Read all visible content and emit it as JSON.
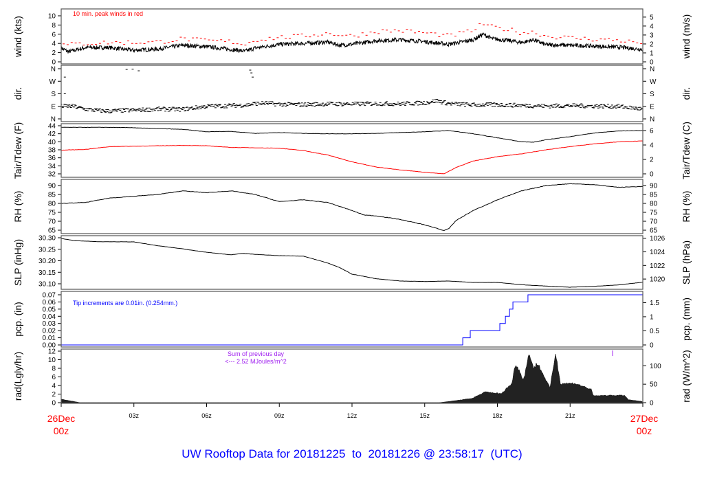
{
  "title": "UW Rooftop Data for 20181225  to  20181226 @ 23:58:17  (UTC)",
  "colors": {
    "title": "#0000ff",
    "peak": "#ff0000",
    "tdew": "#ff0000",
    "pcp": "#0000ff",
    "rad_note": "#a020f0",
    "date_label": "#ff0000"
  },
  "x_axis": {
    "range_hours": [
      0,
      24
    ],
    "ticks": [
      {
        "h": 3,
        "label": "03z"
      },
      {
        "h": 6,
        "label": "06z"
      },
      {
        "h": 9,
        "label": "09z"
      },
      {
        "h": 12,
        "label": "12z"
      },
      {
        "h": 15,
        "label": "15z"
      },
      {
        "h": 18,
        "label": "18z"
      },
      {
        "h": 21,
        "label": "21z"
      }
    ],
    "start_date": "26Dec",
    "start_time": "00z",
    "end_date": "27Dec",
    "end_time": "00z"
  },
  "chart_data": [
    {
      "type": "line",
      "id": "wind",
      "ylabel": "wind (kts)",
      "ylabel_right": "wind (m/s)",
      "ylim": [
        0,
        10
      ],
      "yticks": [
        0,
        2,
        4,
        6,
        8,
        10
      ],
      "yticks_right": [
        0,
        1,
        2,
        3,
        4,
        5
      ],
      "annotation": "10 min. peak winds in red",
      "series": [
        {
          "points": [
            [
              0,
              3
            ],
            [
              0.3,
              2.2
            ],
            [
              1,
              3.1
            ],
            [
              2,
              3.1
            ],
            [
              3,
              2.5
            ],
            [
              4,
              2.8
            ],
            [
              5,
              3.6
            ],
            [
              6,
              3.3
            ],
            [
              7,
              2.7
            ],
            [
              7.6,
              2.3
            ],
            [
              8,
              3
            ],
            [
              9,
              3.8
            ],
            [
              10,
              4
            ],
            [
              11,
              4.3
            ],
            [
              11.5,
              3.6
            ],
            [
              12,
              3.8
            ],
            [
              13,
              4.6
            ],
            [
              14,
              4.8
            ],
            [
              15,
              4.4
            ],
            [
              16,
              3.8
            ],
            [
              17,
              4.8
            ],
            [
              17.4,
              6
            ],
            [
              17.8,
              5
            ],
            [
              18.5,
              4.6
            ],
            [
              19,
              4.2
            ],
            [
              19.5,
              4.8
            ],
            [
              20,
              3.7
            ],
            [
              21,
              3.6
            ],
            [
              22,
              3.4
            ],
            [
              23,
              3.2
            ],
            [
              24,
              2.7
            ]
          ]
        },
        {
          "name": "10 min. peak winds",
          "points": [
            [
              0,
              3.6
            ],
            [
              1,
              4
            ],
            [
              2,
              4.2
            ],
            [
              3,
              4.2
            ],
            [
              4,
              4.3
            ],
            [
              5,
              5
            ],
            [
              6,
              4.6
            ],
            [
              7,
              4.4
            ],
            [
              7.6,
              3.8
            ],
            [
              8,
              4.8
            ],
            [
              9,
              5.3
            ],
            [
              10,
              5.6
            ],
            [
              11,
              6.2
            ],
            [
              12,
              5.6
            ],
            [
              13,
              6.6
            ],
            [
              14,
              6.8
            ],
            [
              15,
              6.3
            ],
            [
              16,
              5.6
            ],
            [
              17,
              6.8
            ],
            [
              17.4,
              8.3
            ],
            [
              17.8,
              7.5
            ],
            [
              18.5,
              7
            ],
            [
              19,
              6.3
            ],
            [
              19.5,
              6.5
            ],
            [
              20,
              5.6
            ],
            [
              21,
              5.2
            ],
            [
              22,
              4.9
            ],
            [
              23,
              4.7
            ],
            [
              24,
              4
            ]
          ]
        }
      ]
    },
    {
      "type": "scatter",
      "id": "dir",
      "ylabel": "dir.",
      "ylabel_right": "dir.",
      "ylim": [
        0,
        360
      ],
      "ytick_labels": [
        "N",
        "E",
        "S",
        "W",
        "N"
      ],
      "series": [
        {
          "points": [
            [
              0,
              92
            ],
            [
              0.5,
              90
            ],
            [
              1,
              70
            ],
            [
              1.5,
              60
            ],
            [
              2,
              55
            ],
            [
              2.5,
              60
            ],
            [
              3,
              62
            ],
            [
              4,
              70
            ],
            [
              5,
              68
            ],
            [
              6,
              90
            ],
            [
              7,
              95
            ],
            [
              7.7,
              100
            ],
            [
              8,
              110
            ],
            [
              8.5,
              112
            ],
            [
              9,
              105
            ],
            [
              10,
              102
            ],
            [
              11,
              108
            ],
            [
              12,
              106
            ],
            [
              13,
              110
            ],
            [
              14,
              108
            ],
            [
              15,
              115
            ],
            [
              15.5,
              130
            ],
            [
              16,
              110
            ],
            [
              17,
              100
            ],
            [
              18,
              102
            ],
            [
              19,
              96
            ],
            [
              20,
              92
            ],
            [
              21,
              95
            ],
            [
              22,
              92
            ],
            [
              23,
              90
            ],
            [
              23.5,
              80
            ],
            [
              24,
              70
            ]
          ]
        }
      ]
    },
    {
      "type": "line",
      "id": "temp",
      "ylabel": "Tair/Tdew (F)",
      "ylabel_right": "Tair/Tdew (C)",
      "ylim": [
        32,
        44
      ],
      "yticks": [
        32,
        34,
        36,
        38,
        40,
        42,
        44
      ],
      "yticks_right": [
        0,
        2,
        4,
        6
      ],
      "series": [
        {
          "name": "Tair",
          "points": [
            [
              0,
              43.6
            ],
            [
              2,
              43.6
            ],
            [
              3,
              43.5
            ],
            [
              4,
              43.3
            ],
            [
              5,
              43.1
            ],
            [
              6,
              42.5
            ],
            [
              7,
              42.6
            ],
            [
              8,
              42.1
            ],
            [
              9,
              42.3
            ],
            [
              10,
              42.1
            ],
            [
              11,
              42
            ],
            [
              12,
              42
            ],
            [
              13,
              42.1
            ],
            [
              14,
              42.3
            ],
            [
              15,
              42.5
            ],
            [
              16,
              42.8
            ],
            [
              17,
              42
            ],
            [
              18,
              41
            ],
            [
              19,
              40
            ],
            [
              19.5,
              39.9
            ],
            [
              20,
              40.5
            ],
            [
              21,
              41.3
            ],
            [
              22,
              42.2
            ],
            [
              23,
              42.7
            ],
            [
              24,
              42.8
            ]
          ]
        },
        {
          "name": "Tdew",
          "points": [
            [
              0,
              37.9
            ],
            [
              1,
              38.1
            ],
            [
              2,
              38.8
            ],
            [
              3,
              38.9
            ],
            [
              4,
              39
            ],
            [
              5,
              39.1
            ],
            [
              6,
              39
            ],
            [
              7,
              38.6
            ],
            [
              8,
              38.5
            ],
            [
              9,
              38.4
            ],
            [
              10,
              37.8
            ],
            [
              11,
              36.7
            ],
            [
              12,
              35
            ],
            [
              13,
              33.7
            ],
            [
              14,
              33
            ],
            [
              15,
              32.4
            ],
            [
              15.8,
              32
            ],
            [
              16.3,
              33.6
            ],
            [
              17,
              35.2
            ],
            [
              18,
              36.3
            ],
            [
              19,
              37
            ],
            [
              20,
              38
            ],
            [
              21,
              38.8
            ],
            [
              22,
              39.5
            ],
            [
              23,
              40
            ],
            [
              24,
              40.2
            ]
          ]
        }
      ]
    },
    {
      "type": "line",
      "id": "rh",
      "ylabel": "RH (%)",
      "ylabel_right": "RH (%)",
      "ylim": [
        65,
        90
      ],
      "yticks": [
        65,
        70,
        75,
        80,
        85,
        90
      ],
      "series": [
        {
          "points": [
            [
              0,
              80
            ],
            [
              1,
              80.5
            ],
            [
              2,
              83
            ],
            [
              3,
              84
            ],
            [
              4,
              85
            ],
            [
              5,
              87
            ],
            [
              6,
              86
            ],
            [
              7,
              87
            ],
            [
              8,
              85
            ],
            [
              9,
              81
            ],
            [
              10,
              82
            ],
            [
              11,
              80.5
            ],
            [
              12,
              76
            ],
            [
              12.5,
              73.5
            ],
            [
              13,
              73
            ],
            [
              14,
              71
            ],
            [
              15,
              68
            ],
            [
              15.5,
              66
            ],
            [
              15.8,
              64.8
            ],
            [
              16,
              66
            ],
            [
              16.3,
              70.5
            ],
            [
              17,
              76
            ],
            [
              18,
              82
            ],
            [
              19,
              87
            ],
            [
              20,
              90
            ],
            [
              21,
              91
            ],
            [
              22,
              90.5
            ],
            [
              23,
              89
            ],
            [
              24,
              89.5
            ]
          ]
        }
      ]
    },
    {
      "type": "line",
      "id": "slp",
      "ylabel": "SLP (inHg)",
      "ylabel_right": "SLP (hPa)",
      "ylim": [
        30.1,
        30.3
      ],
      "yticks": [
        "30.10",
        "30.15",
        "30.20",
        "30.25",
        "30.30"
      ],
      "yticks_right": [
        1020,
        1022,
        1024,
        1026
      ],
      "series": [
        {
          "points": [
            [
              0,
              30.297
            ],
            [
              0.5,
              30.288
            ],
            [
              1.5,
              30.283
            ],
            [
              3,
              30.282
            ],
            [
              4,
              30.265
            ],
            [
              5,
              30.252
            ],
            [
              6,
              30.237
            ],
            [
              7,
              30.226
            ],
            [
              7.5,
              30.232
            ],
            [
              8,
              30.228
            ],
            [
              9,
              30.222
            ],
            [
              10,
              30.22
            ],
            [
              11,
              30.19
            ],
            [
              11.5,
              30.17
            ],
            [
              12,
              30.142
            ],
            [
              13,
              30.122
            ],
            [
              14,
              30.112
            ],
            [
              15,
              30.11
            ],
            [
              16,
              30.112
            ],
            [
              17,
              30.106
            ],
            [
              18,
              30.106
            ],
            [
              19,
              30.096
            ],
            [
              20,
              30.09
            ],
            [
              21,
              30.085
            ],
            [
              22,
              30.089
            ],
            [
              23,
              30.095
            ],
            [
              24,
              30.107
            ]
          ]
        }
      ]
    },
    {
      "type": "line",
      "id": "pcp",
      "step": true,
      "ylabel": "pcp. (in)",
      "ylabel_right": "pcp. (mm)",
      "ylim": [
        0,
        0.07
      ],
      "yticks": [
        "0.00",
        "0.01",
        "0.02",
        "0.03",
        "0.04",
        "0.05",
        "0.06",
        "0.07"
      ],
      "yticks_right": [
        "0",
        "0.5",
        "1",
        "1.5"
      ],
      "annotation": "Tip increments are 0.01in. (0.254mm.)",
      "series": [
        {
          "points": [
            [
              0,
              0
            ],
            [
              16.57,
              0.01
            ],
            [
              16.88,
              0.02
            ],
            [
              18.1,
              0.03
            ],
            [
              18.33,
              0.04
            ],
            [
              18.5,
              0.05
            ],
            [
              18.64,
              0.06
            ],
            [
              19.26,
              0.07
            ],
            [
              24,
              0.07
            ]
          ]
        }
      ]
    },
    {
      "type": "area",
      "id": "rad",
      "ylabel": "rad(Lgly/hr)",
      "ylabel_right": "rad (W/m^2)",
      "ylim": [
        0,
        12
      ],
      "yticks": [
        0,
        2,
        4,
        6,
        8,
        10,
        12
      ],
      "yticks_right": [
        0,
        50,
        100
      ],
      "annotation_line1": "Sum of previous day",
      "annotation_line2": "<--- 2.52 MJoules/m^2",
      "series": [
        {
          "points": [
            [
              0,
              0.8
            ],
            [
              0.3,
              0.5
            ],
            [
              0.7,
              0.1
            ],
            [
              0.75,
              0
            ],
            [
              15.6,
              0
            ],
            [
              16.3,
              0.5
            ],
            [
              16.95,
              1
            ],
            [
              17.5,
              2.5
            ],
            [
              18.18,
              2.1
            ],
            [
              18.33,
              3.1
            ],
            [
              18.6,
              4.5
            ],
            [
              18.75,
              9.3
            ],
            [
              19.08,
              5.3
            ],
            [
              19.32,
              11.7
            ],
            [
              19.5,
              7.9
            ],
            [
              19.65,
              9.3
            ],
            [
              20.17,
              3.4
            ],
            [
              20.4,
              11.6
            ],
            [
              20.6,
              4.5
            ],
            [
              21.2,
              4.5
            ],
            [
              21.87,
              3.1
            ],
            [
              21.96,
              1.6
            ],
            [
              22.6,
              1.7
            ],
            [
              23.25,
              1.7
            ],
            [
              23.4,
              0.7
            ],
            [
              23.95,
              0.3
            ],
            [
              24,
              0.2
            ]
          ]
        }
      ]
    }
  ]
}
